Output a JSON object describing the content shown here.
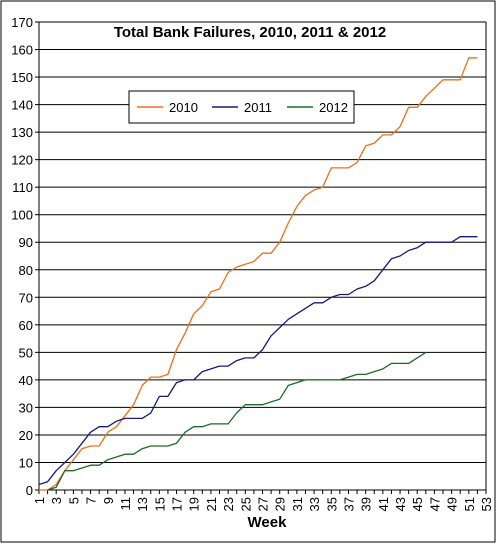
{
  "chart_data": {
    "type": "line",
    "title": "Total Bank Failures, 2010, 2011 & 2012",
    "xlabel": "Week",
    "ylabel": "",
    "xlim": [
      1,
      53
    ],
    "ylim": [
      0,
      170
    ],
    "yticks": [
      0,
      10,
      20,
      30,
      40,
      50,
      60,
      70,
      80,
      90,
      100,
      110,
      120,
      130,
      140,
      150,
      160,
      170
    ],
    "xticks": [
      "1",
      "3",
      "5",
      "7",
      "9",
      "11",
      "13",
      "15",
      "17",
      "19",
      "21",
      "23",
      "25",
      "27",
      "29",
      "31",
      "33",
      "35",
      "37",
      "39",
      "41",
      "43",
      "45",
      "47",
      "49",
      "51",
      "53"
    ],
    "grid": true,
    "legend_position": "top-center",
    "series": [
      {
        "name": "2010",
        "color": "#e8731a",
        "x": [
          1,
          2,
          3,
          4,
          5,
          6,
          7,
          8,
          9,
          10,
          11,
          12,
          13,
          14,
          15,
          16,
          17,
          18,
          19,
          20,
          21,
          22,
          23,
          24,
          25,
          26,
          27,
          28,
          29,
          30,
          31,
          32,
          33,
          34,
          35,
          36,
          37,
          38,
          39,
          40,
          41,
          42,
          43,
          44,
          45,
          46,
          47,
          48,
          49,
          50,
          51,
          52
        ],
        "values": [
          0,
          0,
          2,
          7,
          11,
          15,
          16,
          16,
          21,
          23,
          27,
          31,
          38,
          41,
          41,
          42,
          51,
          57,
          64,
          67,
          72,
          73,
          79,
          81,
          82,
          83,
          86,
          86,
          90,
          97,
          103,
          107,
          109,
          110,
          117,
          117,
          117,
          119,
          125,
          126,
          129,
          129,
          132,
          139,
          139,
          143,
          146,
          149,
          149,
          149,
          157,
          157
        ]
      },
      {
        "name": "2011",
        "color": "#1a1a80",
        "x": [
          1,
          2,
          3,
          4,
          5,
          6,
          7,
          8,
          9,
          10,
          11,
          12,
          13,
          14,
          15,
          16,
          17,
          18,
          19,
          20,
          21,
          22,
          23,
          24,
          25,
          26,
          27,
          28,
          29,
          30,
          31,
          32,
          33,
          34,
          35,
          36,
          37,
          38,
          39,
          40,
          41,
          42,
          43,
          44,
          45,
          46,
          47,
          48,
          49,
          50,
          51,
          52
        ],
        "values": [
          2,
          3,
          7,
          10,
          13,
          17,
          21,
          23,
          23,
          25,
          26,
          26,
          26,
          28,
          34,
          34,
          39,
          40,
          40,
          43,
          44,
          45,
          45,
          47,
          48,
          48,
          51,
          56,
          59,
          62,
          64,
          66,
          68,
          68,
          70,
          71,
          71,
          73,
          74,
          76,
          80,
          84,
          85,
          87,
          88,
          90,
          90,
          90,
          90,
          92,
          92,
          92
        ]
      },
      {
        "name": "2012",
        "color": "#1f6a2a",
        "x": [
          2,
          3,
          4,
          5,
          6,
          7,
          8,
          9,
          10,
          11,
          12,
          13,
          14,
          15,
          16,
          17,
          18,
          19,
          20,
          21,
          22,
          23,
          24,
          25,
          26,
          27,
          28,
          29,
          30,
          31,
          32,
          33,
          34,
          35,
          36,
          37,
          38,
          39,
          40,
          41,
          42,
          43,
          44,
          45,
          46
        ],
        "values": [
          0,
          1,
          7,
          7,
          8,
          9,
          9,
          11,
          12,
          13,
          13,
          15,
          16,
          16,
          16,
          17,
          21,
          23,
          23,
          24,
          24,
          24,
          28,
          31,
          31,
          31,
          32,
          33,
          38,
          39,
          40,
          40,
          40,
          40,
          40,
          41,
          42,
          42,
          43,
          44,
          46,
          46,
          46,
          48,
          50
        ]
      }
    ]
  }
}
